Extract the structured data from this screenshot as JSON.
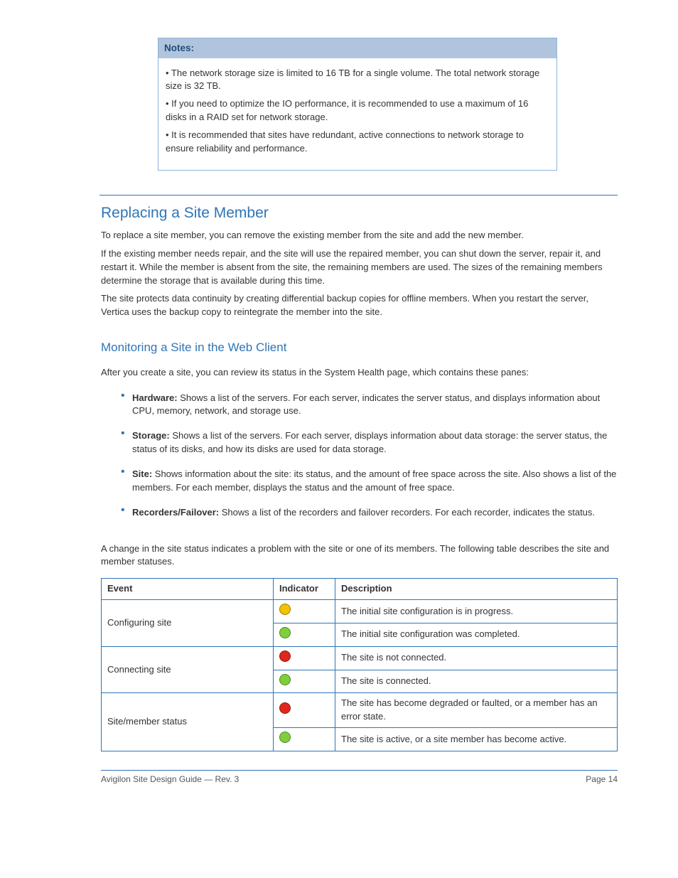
{
  "note": {
    "head": "Notes:",
    "lines": [
      "• The network storage size is limited to 16 TB for a single volume. The total network storage size is 32 TB.",
      "• If you need to optimize the IO performance, it is recommended to use a maximum of 16 disks in a RAID set for network storage.",
      "• It is recommended that sites have redundant, active connections to network storage to ensure reliability and performance."
    ]
  },
  "section": {
    "title": "Replacing a Site Member",
    "paragraphs": [
      "To replace a site member, you can remove the existing member from the site and add the new member.",
      "If the existing member needs repair, and the site will use the repaired member, you can shut down the server, repair it, and restart it. While the member is absent from the site, the remaining members are used. The sizes of the remaining members determine the storage that is available during this time.",
      "The site protects data continuity by creating differential backup copies for offline members. When you restart the server, Vertica uses the backup copy to reintegrate the member into the site."
    ]
  },
  "subsection": {
    "title": "Monitoring a Site in the Web Client",
    "intro": "After you create a site, you can review its status in the System Health page, which contains these panes:",
    "bullets": [
      {
        "title": "Hardware:",
        "text": " Shows a list of the servers. For each server, indicates the server status, and displays information about CPU, memory, network, and storage use."
      },
      {
        "title": "Storage:",
        "text": " Shows a list of the servers. For each server, displays information about data storage: the server status, the status of its disks, and how its disks are used for data storage."
      },
      {
        "title": "Site:",
        "text": " Shows information about the site: its status, and the amount of free space across the site. Also shows a list of the members. For each member, displays the status and the amount of free space."
      },
      {
        "title": "Recorders/Failover:",
        "text": " Shows a list of the recorders and failover recorders. For each recorder, indicates the status."
      }
    ]
  },
  "statusIntro": "A change in the site status indicates a problem with the site or one of its members. The following table describes the site and member statuses.",
  "statusTable": {
    "columns": [
      "Event",
      "Indicator",
      "Description"
    ],
    "rows": [
      {
        "event": "Configuring site",
        "dot": "#f2c200",
        "desc": "The initial site configuration is in progress."
      },
      {
        "event": "",
        "dot": "#7fce3b",
        "desc": "The initial site configuration was completed."
      },
      {
        "event": "Connecting site",
        "dot": "#e1261c",
        "desc": "The site is not connected."
      },
      {
        "event": "",
        "dot": "#7fce3b",
        "desc": "The site is connected."
      },
      {
        "event": "Site/member status",
        "dot": "#e1261c",
        "desc": "The site has become degraded or faulted, or a member has an error state."
      },
      {
        "event": "",
        "dot": "#7fce3b",
        "desc": "The site is active, or a site member has become active."
      }
    ],
    "colWidths": {
      "event": 225,
      "indicator": 70
    }
  },
  "footer": {
    "left": "Avigilon Site Design Guide — Rev. 3",
    "right": "Page 14"
  },
  "colors": {
    "rule": "#2e75b6",
    "noteHeadBg": "#b0c4de",
    "noteBorder": "#8fb3d9"
  }
}
